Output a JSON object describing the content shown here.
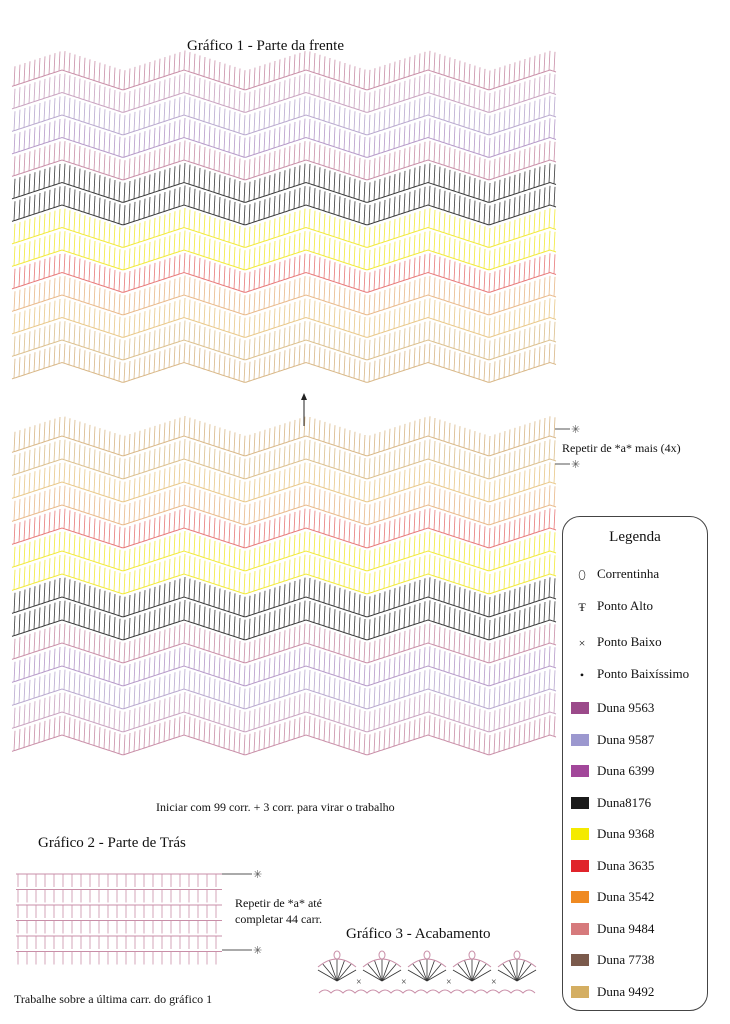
{
  "chart1": {
    "title": "Gráfico 1 - Parte da frente",
    "repeat_note": "Repetir de *a* mais (4x)",
    "start_note": "Iniciar com 99 corr. + 3 corr. para virar o trabalho",
    "top_block_colors": [
      "#c98fa8",
      "#c9a3c0",
      "#b9a9cf",
      "#b69ac9",
      "#c98fa8",
      "#3a3a3a",
      "#3a3a3a",
      "#f2ea3a",
      "#f2ea3a",
      "#e87a7a",
      "#e9b98a",
      "#e9c889",
      "#dcc08e",
      "#d9b888"
    ],
    "bottom_block_colors": [
      "#d9b888",
      "#dcc08e",
      "#e9c889",
      "#e9b98a",
      "#e87a7a",
      "#f2ea3a",
      "#f2ea3a",
      "#3a3a3a",
      "#3a3a3a",
      "#c98fa8",
      "#b69ac9",
      "#b9a9cf",
      "#c9a3c0",
      "#c98fa8"
    ]
  },
  "chart2": {
    "title": "Gráfico 2 - Parte de Trás",
    "repeat_note_1": "Repetir de *a* até",
    "repeat_note_2": "completar 44 carr.",
    "bottom_note": "Trabalhe sobre a última carr. do gráfico 1",
    "color": "#c98fa8"
  },
  "chart3": {
    "title": "Gráfico 3 - Acabamento",
    "color": "#c98fa8"
  },
  "legend": {
    "title": "Legenda",
    "symbols": [
      {
        "icon": "chain-stitch-icon",
        "glyph": "⬯",
        "label": "Correntinha"
      },
      {
        "icon": "double-crochet-icon",
        "glyph": "Ŧ",
        "label": "Ponto Alto"
      },
      {
        "icon": "single-crochet-icon",
        "glyph": "×",
        "label": "Ponto Baixo"
      },
      {
        "icon": "slip-stitch-icon",
        "glyph": "•",
        "label": "Ponto Baixíssimo"
      }
    ],
    "colors": [
      {
        "label": "Duna 9563",
        "color": "#9b4a8a"
      },
      {
        "label": "Duna 9587",
        "color": "#9c98cf"
      },
      {
        "label": "Duna 6399",
        "color": "#a2479a"
      },
      {
        "label": "Duna8176",
        "color": "#1a1a1a"
      },
      {
        "label": "Duna 9368",
        "color": "#f4ea00"
      },
      {
        "label": "Duna 3635",
        "color": "#e0242b"
      },
      {
        "label": "Duna 3542",
        "color": "#ef8a22"
      },
      {
        "label": "Duna 9484",
        "color": "#d67a7c"
      },
      {
        "label": "Duna 7738",
        "color": "#7b5a4c"
      },
      {
        "label": "Duna 9492",
        "color": "#d4ae62"
      }
    ]
  }
}
